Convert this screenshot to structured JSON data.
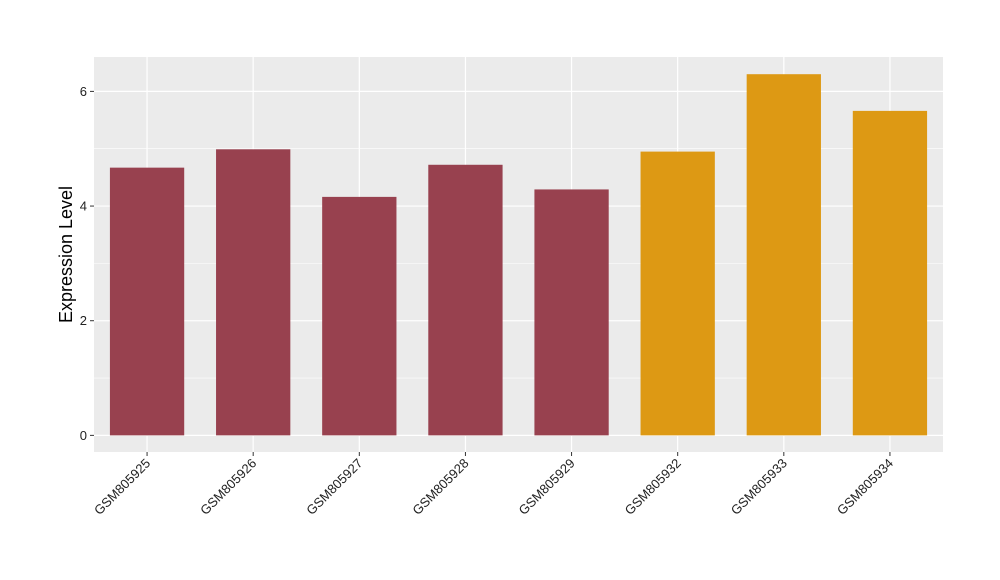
{
  "chart_data": {
    "type": "bar",
    "title": "",
    "xlabel": "",
    "ylabel": "Expression Level",
    "categories": [
      "GSM805925",
      "GSM805926",
      "GSM805927",
      "GSM805928",
      "GSM805929",
      "GSM805932",
      "GSM805933",
      "GSM805934"
    ],
    "values": [
      4.67,
      4.99,
      4.16,
      4.72,
      4.29,
      4.95,
      6.3,
      5.66
    ],
    "bar_colors": [
      "#98414f",
      "#98414f",
      "#98414f",
      "#98414f",
      "#98414f",
      "#dd9914",
      "#dd9914",
      "#dd9914"
    ],
    "ylim": [
      -0.29,
      6.6
    ],
    "yticks": [
      0,
      2,
      4,
      6
    ],
    "grid": true,
    "panel_background": "#ebebeb",
    "grid_color": "#ffffff"
  }
}
